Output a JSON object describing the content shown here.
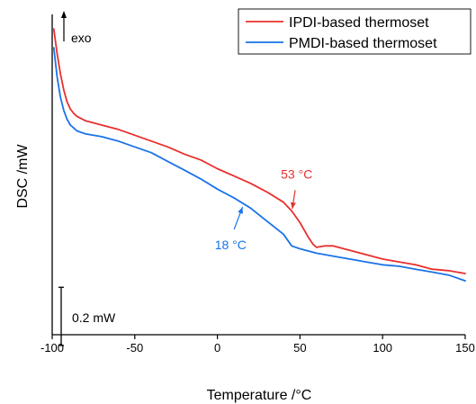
{
  "chart_data": {
    "type": "line",
    "title": "",
    "xlabel": "Temperature /°C",
    "ylabel": "DSC /mW",
    "xlim": [
      -100,
      150
    ],
    "xticks": [
      -100,
      -50,
      0,
      50,
      100,
      150
    ],
    "ylim": [
      0,
      2.2
    ],
    "y_ticks_shown": false,
    "grid": false,
    "legend_position": "top-right",
    "colors": {
      "ipdi": "#e8302e",
      "pmdi": "#1a73e8",
      "axis": "#000000"
    },
    "series": [
      {
        "name": "IPDI-based thermoset",
        "color": "#e8302e",
        "points": [
          [
            -99,
            2.1
          ],
          [
            -97,
            1.93
          ],
          [
            -95,
            1.79
          ],
          [
            -93,
            1.68
          ],
          [
            -91,
            1.6
          ],
          [
            -89,
            1.55
          ],
          [
            -87,
            1.52
          ],
          [
            -85,
            1.5
          ],
          [
            -80,
            1.47
          ],
          [
            -70,
            1.44
          ],
          [
            -60,
            1.41
          ],
          [
            -50,
            1.37
          ],
          [
            -40,
            1.33
          ],
          [
            -30,
            1.29
          ],
          [
            -20,
            1.24
          ],
          [
            -10,
            1.2
          ],
          [
            0,
            1.14
          ],
          [
            10,
            1.09
          ],
          [
            20,
            1.04
          ],
          [
            30,
            0.98
          ],
          [
            40,
            0.91
          ],
          [
            45,
            0.85
          ],
          [
            50,
            0.77
          ],
          [
            55,
            0.67
          ],
          [
            58,
            0.62
          ],
          [
            60,
            0.6
          ],
          [
            65,
            0.61
          ],
          [
            70,
            0.61
          ],
          [
            80,
            0.58
          ],
          [
            90,
            0.55
          ],
          [
            100,
            0.52
          ],
          [
            110,
            0.5
          ],
          [
            120,
            0.48
          ],
          [
            130,
            0.45
          ],
          [
            140,
            0.44
          ],
          [
            150,
            0.42
          ]
        ]
      },
      {
        "name": "PMDI-based thermoset",
        "color": "#1a73e8",
        "points": [
          [
            -99,
            1.97
          ],
          [
            -97,
            1.77
          ],
          [
            -95,
            1.63
          ],
          [
            -93,
            1.54
          ],
          [
            -91,
            1.48
          ],
          [
            -89,
            1.44
          ],
          [
            -87,
            1.42
          ],
          [
            -85,
            1.4
          ],
          [
            -80,
            1.38
          ],
          [
            -70,
            1.36
          ],
          [
            -60,
            1.33
          ],
          [
            -50,
            1.29
          ],
          [
            -40,
            1.25
          ],
          [
            -30,
            1.19
          ],
          [
            -20,
            1.13
          ],
          [
            -10,
            1.07
          ],
          [
            0,
            1.0
          ],
          [
            10,
            0.94
          ],
          [
            20,
            0.87
          ],
          [
            30,
            0.78
          ],
          [
            40,
            0.69
          ],
          [
            45,
            0.61
          ],
          [
            50,
            0.59
          ],
          [
            60,
            0.56
          ],
          [
            70,
            0.54
          ],
          [
            80,
            0.52
          ],
          [
            90,
            0.5
          ],
          [
            100,
            0.48
          ],
          [
            110,
            0.47
          ],
          [
            120,
            0.45
          ],
          [
            130,
            0.43
          ],
          [
            140,
            0.41
          ],
          [
            150,
            0.37
          ]
        ]
      }
    ],
    "annotations": [
      {
        "text": "53 °C",
        "series": "IPDI-based thermoset",
        "target": [
          45,
          0.84
        ],
        "label_at": [
          48,
          1.06
        ],
        "color": "#e8302e"
      },
      {
        "text": "18 °C",
        "series": "PMDI-based thermoset",
        "target": [
          16,
          0.9
        ],
        "label_at": [
          8,
          0.66
        ],
        "color": "#1a73e8"
      }
    ],
    "exo_label": "exo",
    "scale_bar": {
      "label": "0.2 mW",
      "value": 0.2
    }
  }
}
